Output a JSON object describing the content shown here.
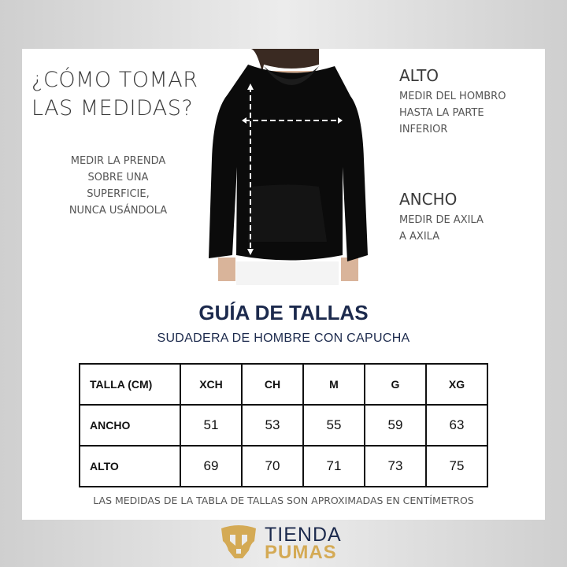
{
  "header": {
    "title_line1": "¿CÓMO TOMAR",
    "title_line2": "LAS MEDIDAS?"
  },
  "note": {
    "lines": [
      "MEDIR LA PRENDA",
      "SOBRE UNA",
      "SUPERFICIE,",
      "NUNCA USÁNDOLA"
    ]
  },
  "alto": {
    "label": "ALTO",
    "lines": [
      "MEDIR DEL HOMBRO",
      "HASTA LA PARTE",
      "INFERIOR"
    ]
  },
  "ancho": {
    "label": "ANCHO",
    "lines": [
      "MEDIR DE AXILA",
      "A AXILA"
    ]
  },
  "guide": {
    "title": "GUÍA DE TALLAS",
    "subtitle": "SUDADERA DE HOMBRE CON CAPUCHA"
  },
  "table": {
    "header": [
      "TALLA (CM)",
      "XCH",
      "CH",
      "M",
      "G",
      "XG"
    ],
    "rows": [
      {
        "label": "ANCHO",
        "values": [
          "51",
          "53",
          "55",
          "59",
          "63"
        ]
      },
      {
        "label": "ALTO",
        "values": [
          "69",
          "70",
          "71",
          "73",
          "75"
        ]
      }
    ]
  },
  "footnote": "LAS MEDIDAS DE LA TABLA DE TALLAS SON APROXIMADAS EN CENTÍMETROS",
  "brand": {
    "line1": "TIENDA",
    "line2": "PUMAS",
    "colors": {
      "navy": "#1c2a4d",
      "gold": "#d4aa55"
    }
  }
}
